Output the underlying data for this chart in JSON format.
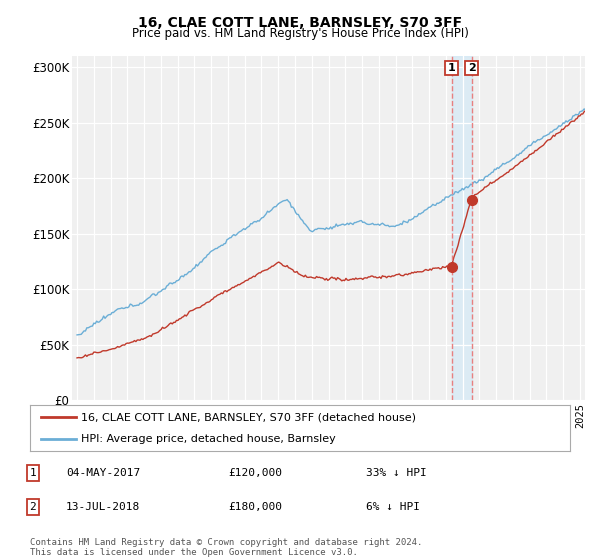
{
  "title": "16, CLAE COTT LANE, BARNSLEY, S70 3FF",
  "subtitle": "Price paid vs. HM Land Registry's House Price Index (HPI)",
  "legend_line1": "16, CLAE COTT LANE, BARNSLEY, S70 3FF (detached house)",
  "legend_line2": "HPI: Average price, detached house, Barnsley",
  "transaction1_date": "04-MAY-2017",
  "transaction1_price": "£120,000",
  "transaction1_hpi": "33% ↓ HPI",
  "transaction1_year": 2017.35,
  "transaction1_value": 120000,
  "transaction2_date": "13-JUL-2018",
  "transaction2_price": "£180,000",
  "transaction2_hpi": "6% ↓ HPI",
  "transaction2_year": 2018.54,
  "transaction2_value": 180000,
  "hpi_color": "#6baed6",
  "price_color": "#c0392b",
  "vline_color": "#e88080",
  "footer_text": "Contains HM Land Registry data © Crown copyright and database right 2024.\nThis data is licensed under the Open Government Licence v3.0.",
  "ylim": [
    0,
    310000
  ],
  "yticks": [
    0,
    50000,
    100000,
    150000,
    200000,
    250000,
    300000
  ],
  "ytick_labels": [
    "£0",
    "£50K",
    "£100K",
    "£150K",
    "£200K",
    "£250K",
    "£300K"
  ],
  "xstart": 1995,
  "xend": 2025,
  "background_color": "#f0f0f0"
}
